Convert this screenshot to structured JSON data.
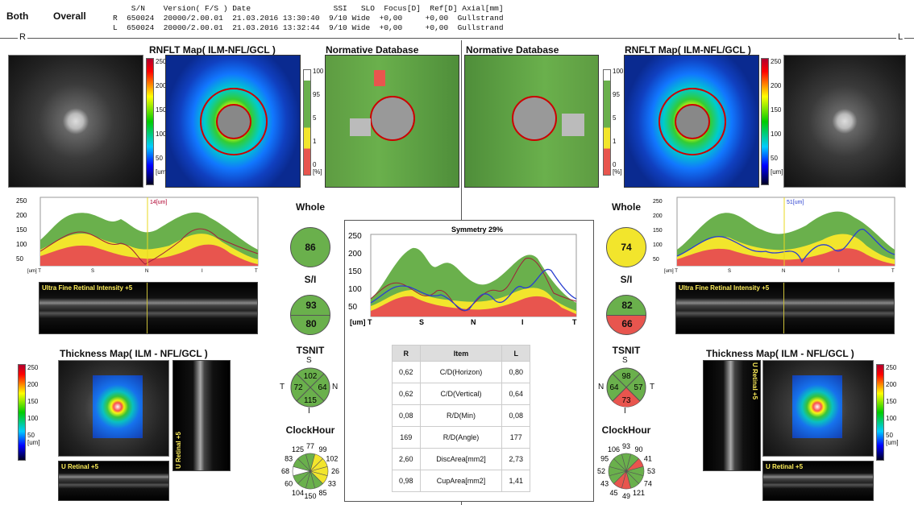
{
  "header": {
    "eye_label": "Both",
    "mode_label": "Overall",
    "col_head": "    S/N    Version( F/S ) Date                  SSI   SLO  Focus[D]  Ref[D] Axial[mm]",
    "row_r": "R  650024  20000/2.00.01  21.03.2016 13:30:40  9/10 Wide  +0,00     +0,00  Gullstrand",
    "row_l": "L  650024  20000/2.00.01  21.03.2016 13:32:44  9/10 Wide  +0,00     +0,00  Gullstrand",
    "r_marker": "R",
    "l_marker": "L"
  },
  "right_eye": {
    "rnflt_title": "RNFLT Map( ILM-NFL/GCL )",
    "norm_title": "Normative Database",
    "cbar_ticks": [
      "250",
      "200",
      "150",
      "100",
      "50",
      "[um]"
    ],
    "norm_ticks": [
      "100",
      "95",
      "5",
      "1",
      "0",
      "[%]"
    ],
    "profile_marker": "14[um]",
    "profile_y": [
      "250",
      "200",
      "150",
      "100",
      "50"
    ],
    "profile_x": [
      "[um] T",
      "S",
      "N",
      "I",
      "T"
    ],
    "bscan_label": "Ultra Fine Retinal Intensity +5",
    "thick_title": "Thickness Map( ILM - NFL/GCL )",
    "thick_ticks": [
      "250",
      "200",
      "150",
      "100",
      "50",
      "[um]"
    ],
    "vscan_label": "U Retinal +5",
    "hscan_label": "U Retinal +5",
    "whole": "86",
    "si_s": "93",
    "si_i": "80",
    "tsnit": {
      "s": "102",
      "t": "72",
      "n": "64",
      "i": "115",
      "S": "S",
      "T": "T",
      "N": "N",
      "I": "I"
    },
    "clock": [
      "77",
      "99",
      "102",
      "26",
      "33",
      "85",
      "150",
      "104",
      "60",
      "68",
      "83",
      "125"
    ]
  },
  "left_eye": {
    "rnflt_title": "RNFLT Map( ILM-NFL/GCL )",
    "norm_title": "Normative Database",
    "cbar_ticks": [
      "250",
      "200",
      "150",
      "100",
      "50",
      "[um]"
    ],
    "norm_ticks": [
      "100",
      "95",
      "5",
      "1",
      "0",
      "[%]"
    ],
    "profile_marker": "51[um]",
    "profile_y": [
      "250",
      "200",
      "150",
      "100",
      "50"
    ],
    "profile_x": [
      "[um] T",
      "S",
      "N",
      "I",
      "T"
    ],
    "bscan_label": "Ultra Fine Retinal Intensity +5",
    "thick_title": "Thickness Map( ILM - NFL/GCL )",
    "thick_ticks": [
      "250",
      "200",
      "150",
      "100",
      "50",
      "[um]"
    ],
    "vscan_label": "U Retinal +5",
    "hscan_label": "U Retinal +5",
    "whole": "74",
    "si_s": "82",
    "si_i": "66",
    "tsnit": {
      "s": "98",
      "t": "57",
      "n": "64",
      "i": "73",
      "S": "S",
      "T": "T",
      "N": "N",
      "I": "I"
    },
    "clock": [
      "93",
      "90",
      "41",
      "53",
      "74",
      "121",
      "49",
      "45",
      "43",
      "52",
      "95",
      "106"
    ]
  },
  "labels": {
    "whole": "Whole",
    "si": "S/I",
    "tsnit": "TSNIT",
    "clock": "ClockHour"
  },
  "symmetry": {
    "title": "Symmetry 29%",
    "y": [
      "250",
      "200",
      "150",
      "100",
      "50"
    ],
    "x": [
      "[um] T",
      "S",
      "N",
      "I",
      "T"
    ]
  },
  "table": {
    "head": [
      "R",
      "Item",
      "L"
    ],
    "rows": [
      [
        "0,62",
        "C/D(Horizon)",
        "0,80"
      ],
      [
        "0,62",
        "C/D(Vertical)",
        "0,64"
      ],
      [
        "0,08",
        "R/D(Min)",
        "0,08"
      ],
      [
        "169",
        "R/D(Angle)",
        "177"
      ],
      [
        "2,60",
        "DiscArea[mm2]",
        "2,73"
      ],
      [
        "0,98",
        "CupArea[mm2]",
        "1,41"
      ]
    ]
  },
  "colors": {
    "green": "#6ab04c",
    "yellow": "#f2e52c",
    "red": "#e8554e",
    "wine": "#a0203a",
    "blue": "#2a3fd0"
  }
}
